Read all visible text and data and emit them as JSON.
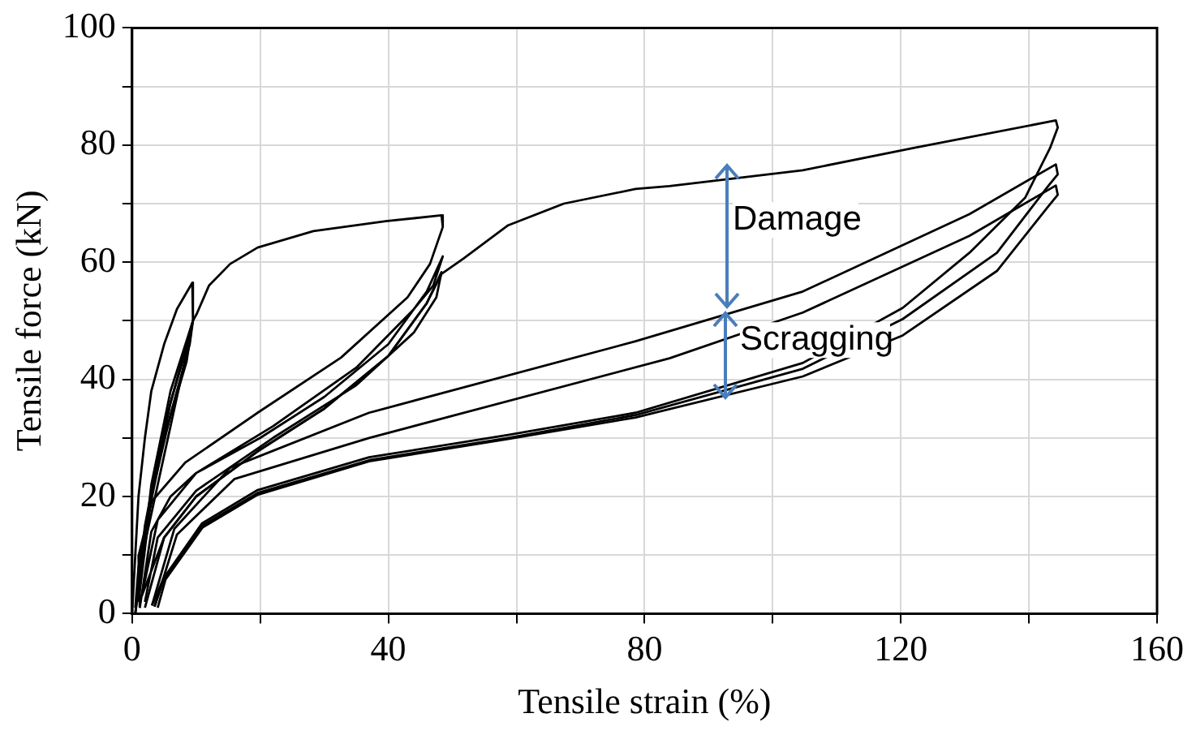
{
  "chart_data": {
    "type": "line",
    "xlabel": "Tensile strain (%)",
    "ylabel": "Tensile force (kN)",
    "xlim": [
      0,
      160
    ],
    "xticks": [
      0,
      {
        "value": 20,
        "label": null
      },
      40,
      {
        "value": 60,
        "label": null
      },
      80,
      {
        "value": 100,
        "label": null
      },
      120,
      {
        "value": 140,
        "label": null
      },
      160
    ],
    "ylim": [
      0,
      100
    ],
    "yticks": [
      0,
      {
        "value": 10,
        "label": null
      },
      20,
      {
        "value": 30,
        "label": null
      },
      40,
      {
        "value": 50,
        "label": null
      },
      60,
      {
        "value": 70,
        "label": null
      },
      80,
      {
        "value": 90,
        "label": null
      },
      100
    ],
    "grid": true,
    "legend": false,
    "marker": "none",
    "line_style": "solid",
    "annotations": [
      "Damage",
      "Scragging"
    ],
    "series": [
      {
        "color": "#000000",
        "x": [
          0,
          0.5,
          1,
          2,
          3,
          5,
          7,
          9.4,
          9.5,
          8,
          6,
          4,
          2,
          1,
          0.5
        ],
        "values": [
          0,
          10,
          20,
          30,
          38,
          46,
          52,
          56.5,
          50,
          42,
          32,
          22,
          12,
          4,
          0
        ]
      },
      {
        "color": "#000000",
        "x": [
          0.5,
          2,
          5,
          8,
          9.5,
          9,
          6,
          3,
          1,
          0.5
        ],
        "values": [
          0,
          15,
          32,
          44,
          50,
          46,
          34,
          20,
          8,
          1
        ]
      },
      {
        "color": "#000000",
        "x": [
          1,
          3,
          6,
          9.2,
          8.5,
          5,
          2,
          1
        ],
        "values": [
          2,
          20,
          36,
          48,
          43,
          30,
          14,
          3
        ]
      },
      {
        "color": "#000000",
        "x": [
          1,
          3,
          6,
          9.5,
          10.1,
          12,
          15.3,
          19.6,
          28.3,
          39.6,
          48.3,
          48.5,
          46.5,
          43,
          32.6,
          19.6,
          8.3,
          3.1,
          1,
          1.2
        ],
        "values": [
          3,
          22,
          38,
          50,
          51.2,
          56,
          59.7,
          62.5,
          65.3,
          67,
          68,
          66,
          59.7,
          54,
          43.7,
          34.3,
          25.8,
          19.2,
          9.8,
          1
        ]
      },
      {
        "color": "#000000",
        "x": [
          1.2,
          3,
          6,
          10,
          20,
          30,
          40,
          46,
          48.5,
          47,
          44,
          35,
          22,
          10,
          4,
          1.5
        ],
        "values": [
          1,
          14,
          20,
          24,
          30,
          37,
          46,
          55,
          61,
          56,
          52,
          42,
          32,
          24,
          16,
          3
        ]
      },
      {
        "color": "#000000",
        "x": [
          1.5,
          5,
          10,
          20,
          30,
          40,
          46,
          48.3,
          47.5,
          44,
          35,
          22,
          10,
          4,
          2
        ],
        "values": [
          3,
          13,
          20,
          28,
          35,
          44,
          53,
          58.3,
          54,
          48,
          39,
          30,
          21,
          13,
          2
        ]
      },
      {
        "color": "#000000",
        "x": [
          2,
          5,
          10,
          20,
          30,
          40,
          46,
          48.3,
          51.7,
          58.7,
          67.4,
          78.6,
          83.9,
          104.7,
          122,
          144.2,
          144.5,
          143.3,
          139.4,
          130.7,
          120.3,
          104.7,
          78.6,
          58.7,
          37,
          19.6,
          10.9,
          4.9,
          3.1
        ],
        "values": [
          1,
          13,
          20,
          28,
          35,
          44,
          53,
          58,
          60.6,
          66.3,
          70,
          72.5,
          73,
          75.7,
          79.5,
          84.2,
          83,
          79.5,
          71,
          61.6,
          52.2,
          42.8,
          34.3,
          30.5,
          26.7,
          21.1,
          15.4,
          6,
          1.4
        ]
      },
      {
        "color": "#000000",
        "x": [
          3.1,
          6.6,
          15.3,
          37,
          78.6,
          104.7,
          130.7,
          144.2,
          144.5,
          143,
          135,
          120.3,
          104.7,
          78.6,
          58.7,
          37,
          19.6,
          10.9,
          5,
          3.5
        ],
        "values": [
          1.4,
          14.5,
          24.9,
          34.3,
          46.5,
          55,
          68.2,
          76.7,
          75,
          73,
          61.6,
          50.3,
          41.8,
          33.9,
          30,
          26.2,
          20.6,
          15,
          6,
          1.2
        ]
      },
      {
        "color": "#000000",
        "x": [
          3.5,
          7,
          16,
          37,
          83.9,
          104.7,
          130.7,
          144.2,
          144.5,
          143,
          135,
          120.3,
          104.7,
          78.6,
          58.7,
          37,
          19.6,
          11,
          5.2,
          4
        ],
        "values": [
          1.2,
          13.5,
          23,
          30,
          43.6,
          51.4,
          64.5,
          73.1,
          71.5,
          69.5,
          58.5,
          47.5,
          40.5,
          33.5,
          29.8,
          26,
          20.3,
          14.7,
          5.8,
          1
        ]
      }
    ]
  }
}
